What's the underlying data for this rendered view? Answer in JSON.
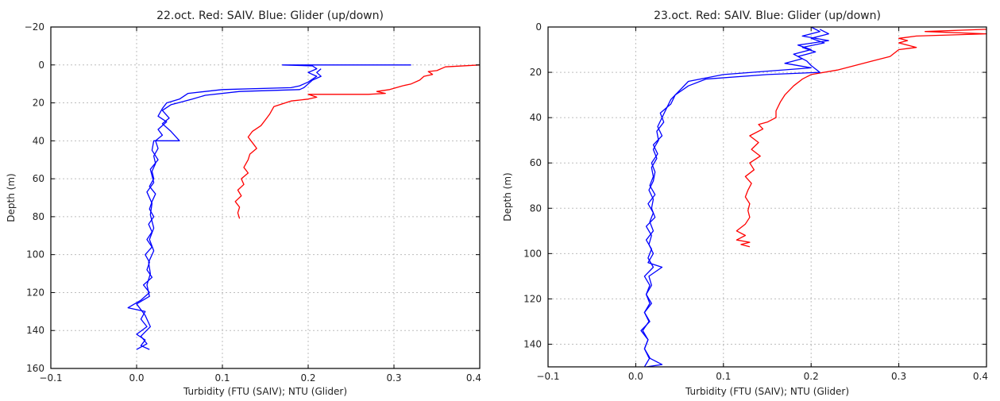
{
  "chart_data": [
    {
      "type": "line",
      "title": "22.oct. Red: SAIV. Blue: Glider (up/down)",
      "xlabel": "Turbidity (FTU (SAIV); NTU (Glider)",
      "ylabel": "Depth (m)",
      "xlim": [
        -0.1,
        0.4
      ],
      "ylim": [
        160,
        -20
      ],
      "y_inverted": true,
      "grid": true,
      "xticks": [
        -0.1,
        0.0,
        0.1,
        0.2,
        0.3,
        0.4
      ],
      "xtick_labels": [
        "−0.1",
        "0.0",
        "0.1",
        "0.2",
        "0.3",
        "0.4"
      ],
      "yticks": [
        -20,
        0,
        20,
        40,
        60,
        80,
        100,
        120,
        140,
        160
      ],
      "ytick_labels": [
        "−20",
        "0",
        "20",
        "40",
        "60",
        "80",
        "100",
        "120",
        "140",
        "160"
      ],
      "series": [
        {
          "color": "#ff0000",
          "points": [
            [
              0.4,
              0
            ],
            [
              0.36,
              1
            ],
            [
              0.35,
              3
            ],
            [
              0.34,
              3.5
            ],
            [
              0.345,
              5
            ],
            [
              0.335,
              6
            ],
            [
              0.33,
              8
            ],
            [
              0.32,
              10
            ],
            [
              0.31,
              11
            ],
            [
              0.295,
              13
            ],
            [
              0.28,
              14
            ],
            [
              0.29,
              15
            ],
            [
              0.27,
              15.5
            ],
            [
              0.2,
              15.5
            ],
            [
              0.21,
              17
            ],
            [
              0.2,
              18
            ],
            [
              0.18,
              19
            ],
            [
              0.16,
              22
            ],
            [
              0.155,
              26
            ],
            [
              0.15,
              29
            ],
            [
              0.145,
              32
            ],
            [
              0.135,
              35
            ],
            [
              0.13,
              38
            ],
            [
              0.135,
              41
            ],
            [
              0.14,
              44
            ],
            [
              0.132,
              47
            ],
            [
              0.13,
              50
            ],
            [
              0.125,
              54
            ],
            [
              0.13,
              57
            ],
            [
              0.122,
              60
            ],
            [
              0.125,
              63
            ],
            [
              0.118,
              66
            ],
            [
              0.122,
              69
            ],
            [
              0.115,
              72
            ],
            [
              0.12,
              75
            ],
            [
              0.118,
              78
            ],
            [
              0.12,
              81
            ]
          ]
        },
        {
          "color": "#0000ff",
          "points": [
            [
              0.32,
              0
            ],
            [
              0.17,
              0
            ],
            [
              0.205,
              0.5
            ],
            [
              0.21,
              2
            ],
            [
              0.2,
              4
            ],
            [
              0.21,
              6
            ],
            [
              0.2,
              9
            ],
            [
              0.19,
              11
            ],
            [
              0.18,
              12
            ],
            [
              0.1,
              13
            ],
            [
              0.06,
              15
            ],
            [
              0.05,
              18
            ],
            [
              0.035,
              20
            ],
            [
              0.03,
              23
            ],
            [
              0.025,
              27
            ],
            [
              0.035,
              30
            ],
            [
              0.025,
              34
            ],
            [
              0.03,
              37
            ],
            [
              0.022,
              40
            ],
            [
              0.025,
              44
            ],
            [
              0.02,
              48
            ],
            [
              0.022,
              52
            ],
            [
              0.018,
              56
            ],
            [
              0.02,
              60
            ],
            [
              0.015,
              64
            ],
            [
              0.022,
              68
            ],
            [
              0.018,
              72
            ],
            [
              0.015,
              76
            ],
            [
              0.02,
              80
            ],
            [
              0.014,
              84
            ],
            [
              0.018,
              88
            ],
            [
              0.012,
              92
            ],
            [
              0.018,
              96
            ],
            [
              0.01,
              100
            ],
            [
              0.015,
              104
            ],
            [
              0.012,
              108
            ],
            [
              0.018,
              112
            ],
            [
              0.008,
              116
            ],
            [
              0.015,
              120
            ],
            [
              0.005,
              124
            ],
            [
              -0.01,
              128
            ],
            [
              0.01,
              130
            ],
            [
              0.005,
              134
            ],
            [
              0.012,
              138
            ],
            [
              0.0,
              142
            ],
            [
              0.01,
              145
            ],
            [
              0.005,
              148
            ],
            [
              0.015,
              150
            ]
          ]
        },
        {
          "color": "#0000ff",
          "points": [
            [
              0.215,
              2
            ],
            [
              0.21,
              4
            ],
            [
              0.215,
              6
            ],
            [
              0.205,
              8
            ],
            [
              0.2,
              10
            ],
            [
              0.195,
              12
            ],
            [
              0.19,
              13
            ],
            [
              0.12,
              14
            ],
            [
              0.08,
              16
            ],
            [
              0.065,
              18
            ],
            [
              0.04,
              21
            ],
            [
              0.03,
              24
            ],
            [
              0.038,
              28
            ],
            [
              0.03,
              31
            ],
            [
              0.04,
              35
            ],
            [
              0.05,
              40
            ],
            [
              0.02,
              40
            ],
            [
              0.018,
              45
            ],
            [
              0.025,
              50
            ],
            [
              0.016,
              55
            ],
            [
              0.02,
              62
            ],
            [
              0.012,
              67
            ],
            [
              0.018,
              73
            ],
            [
              0.016,
              79
            ],
            [
              0.02,
              86
            ],
            [
              0.015,
              92
            ],
            [
              0.02,
              98
            ],
            [
              0.014,
              104
            ],
            [
              0.016,
              110
            ],
            [
              0.012,
              116
            ],
            [
              0.015,
              122
            ],
            [
              0.0,
              126
            ],
            [
              0.01,
              132
            ],
            [
              0.016,
              138
            ],
            [
              0.005,
              143
            ],
            [
              0.012,
              147
            ],
            [
              0.0,
              150
            ]
          ]
        }
      ]
    },
    {
      "type": "line",
      "title": "23.oct. Red: SAIV. Blue: Glider (up/down)",
      "xlabel": "Turbidity (FTU (SAIV); NTU (Glider)",
      "ylabel": "Depth (m)",
      "xlim": [
        -0.1,
        0.4
      ],
      "ylim": [
        150,
        0
      ],
      "y_inverted": true,
      "grid": true,
      "xticks": [
        -0.1,
        0.0,
        0.1,
        0.2,
        0.3,
        0.4
      ],
      "xtick_labels": [
        "−0.1",
        "0.0",
        "0.1",
        "0.2",
        "0.3",
        "0.4"
      ],
      "yticks": [
        0,
        20,
        40,
        60,
        80,
        100,
        120,
        140
      ],
      "ytick_labels": [
        "0",
        "20",
        "40",
        "60",
        "80",
        "100",
        "120",
        "140"
      ],
      "series": [
        {
          "color": "#ff0000",
          "points": [
            [
              0.4,
              1
            ],
            [
              0.33,
              2
            ],
            [
              0.4,
              3
            ],
            [
              0.32,
              4
            ],
            [
              0.3,
              5
            ],
            [
              0.31,
              6
            ],
            [
              0.3,
              7
            ],
            [
              0.32,
              9
            ],
            [
              0.3,
              10
            ],
            [
              0.29,
              13
            ],
            [
              0.27,
              15
            ],
            [
              0.25,
              17
            ],
            [
              0.23,
              19
            ],
            [
              0.2,
              21
            ],
            [
              0.19,
              23
            ],
            [
              0.18,
              26
            ],
            [
              0.17,
              30
            ],
            [
              0.165,
              33
            ],
            [
              0.16,
              37
            ],
            [
              0.16,
              40
            ],
            [
              0.15,
              42
            ],
            [
              0.14,
              43
            ],
            [
              0.145,
              45
            ],
            [
              0.13,
              48
            ],
            [
              0.14,
              51
            ],
            [
              0.132,
              54
            ],
            [
              0.142,
              57
            ],
            [
              0.13,
              60
            ],
            [
              0.135,
              63
            ],
            [
              0.125,
              66
            ],
            [
              0.132,
              69
            ],
            [
              0.128,
              72
            ],
            [
              0.125,
              75
            ],
            [
              0.13,
              78
            ],
            [
              0.128,
              81
            ],
            [
              0.13,
              84
            ],
            [
              0.125,
              87
            ],
            [
              0.115,
              90
            ],
            [
              0.125,
              92
            ],
            [
              0.115,
              94
            ],
            [
              0.13,
              95
            ],
            [
              0.12,
              96
            ],
            [
              0.13,
              97
            ]
          ]
        },
        {
          "color": "#0000ff",
          "points": [
            [
              0.2,
              0
            ],
            [
              0.21,
              2
            ],
            [
              0.19,
              4
            ],
            [
              0.22,
              6
            ],
            [
              0.185,
              8
            ],
            [
              0.2,
              10
            ],
            [
              0.18,
              12
            ],
            [
              0.19,
              14
            ],
            [
              0.17,
              16
            ],
            [
              0.2,
              18
            ],
            [
              0.1,
              21
            ],
            [
              0.06,
              24
            ],
            [
              0.05,
              28
            ],
            [
              0.04,
              32
            ],
            [
              0.035,
              36
            ],
            [
              0.03,
              40
            ],
            [
              0.025,
              44
            ],
            [
              0.03,
              48
            ],
            [
              0.02,
              52
            ],
            [
              0.025,
              56
            ],
            [
              0.018,
              60
            ],
            [
              0.022,
              64
            ],
            [
              0.02,
              68
            ],
            [
              0.015,
              72
            ],
            [
              0.02,
              76
            ],
            [
              0.018,
              80
            ],
            [
              0.022,
              84
            ],
            [
              0.012,
              88
            ],
            [
              0.018,
              92
            ],
            [
              0.015,
              96
            ],
            [
              0.02,
              100
            ],
            [
              0.014,
              104
            ],
            [
              0.03,
              106
            ],
            [
              0.015,
              110
            ],
            [
              0.018,
              114
            ],
            [
              0.012,
              118
            ],
            [
              0.016,
              122
            ],
            [
              0.01,
              126
            ],
            [
              0.015,
              130
            ],
            [
              0.008,
              134
            ],
            [
              0.014,
              138
            ],
            [
              0.01,
              142
            ],
            [
              0.015,
              146
            ],
            [
              0.03,
              149
            ],
            [
              0.012,
              150
            ]
          ]
        },
        {
          "color": "#0000ff",
          "points": [
            [
              0.21,
              1
            ],
            [
              0.22,
              3
            ],
            [
              0.2,
              5
            ],
            [
              0.215,
              7
            ],
            [
              0.19,
              9
            ],
            [
              0.205,
              11
            ],
            [
              0.185,
              13
            ],
            [
              0.195,
              15
            ],
            [
              0.2,
              17
            ],
            [
              0.21,
              20
            ],
            [
              0.15,
              21
            ],
            [
              0.08,
              23
            ],
            [
              0.06,
              26
            ],
            [
              0.045,
              30
            ],
            [
              0.04,
              34
            ],
            [
              0.028,
              38
            ],
            [
              0.032,
              42
            ],
            [
              0.024,
              46
            ],
            [
              0.026,
              50
            ],
            [
              0.02,
              54
            ],
            [
              0.024,
              58
            ],
            [
              0.018,
              62
            ],
            [
              0.02,
              66
            ],
            [
              0.016,
              70
            ],
            [
              0.022,
              74
            ],
            [
              0.014,
              78
            ],
            [
              0.02,
              82
            ],
            [
              0.016,
              86
            ],
            [
              0.02,
              90
            ],
            [
              0.012,
              94
            ],
            [
              0.018,
              98
            ],
            [
              0.014,
              102
            ],
            [
              0.02,
              106
            ],
            [
              0.01,
              110
            ],
            [
              0.016,
              114
            ],
            [
              0.012,
              118
            ],
            [
              0.018,
              122
            ],
            [
              0.01,
              126
            ],
            [
              0.016,
              130
            ],
            [
              0.006,
              134
            ],
            [
              0.014,
              138
            ],
            [
              0.01,
              142
            ],
            [
              0.016,
              146
            ],
            [
              0.01,
              150
            ]
          ]
        }
      ]
    }
  ]
}
